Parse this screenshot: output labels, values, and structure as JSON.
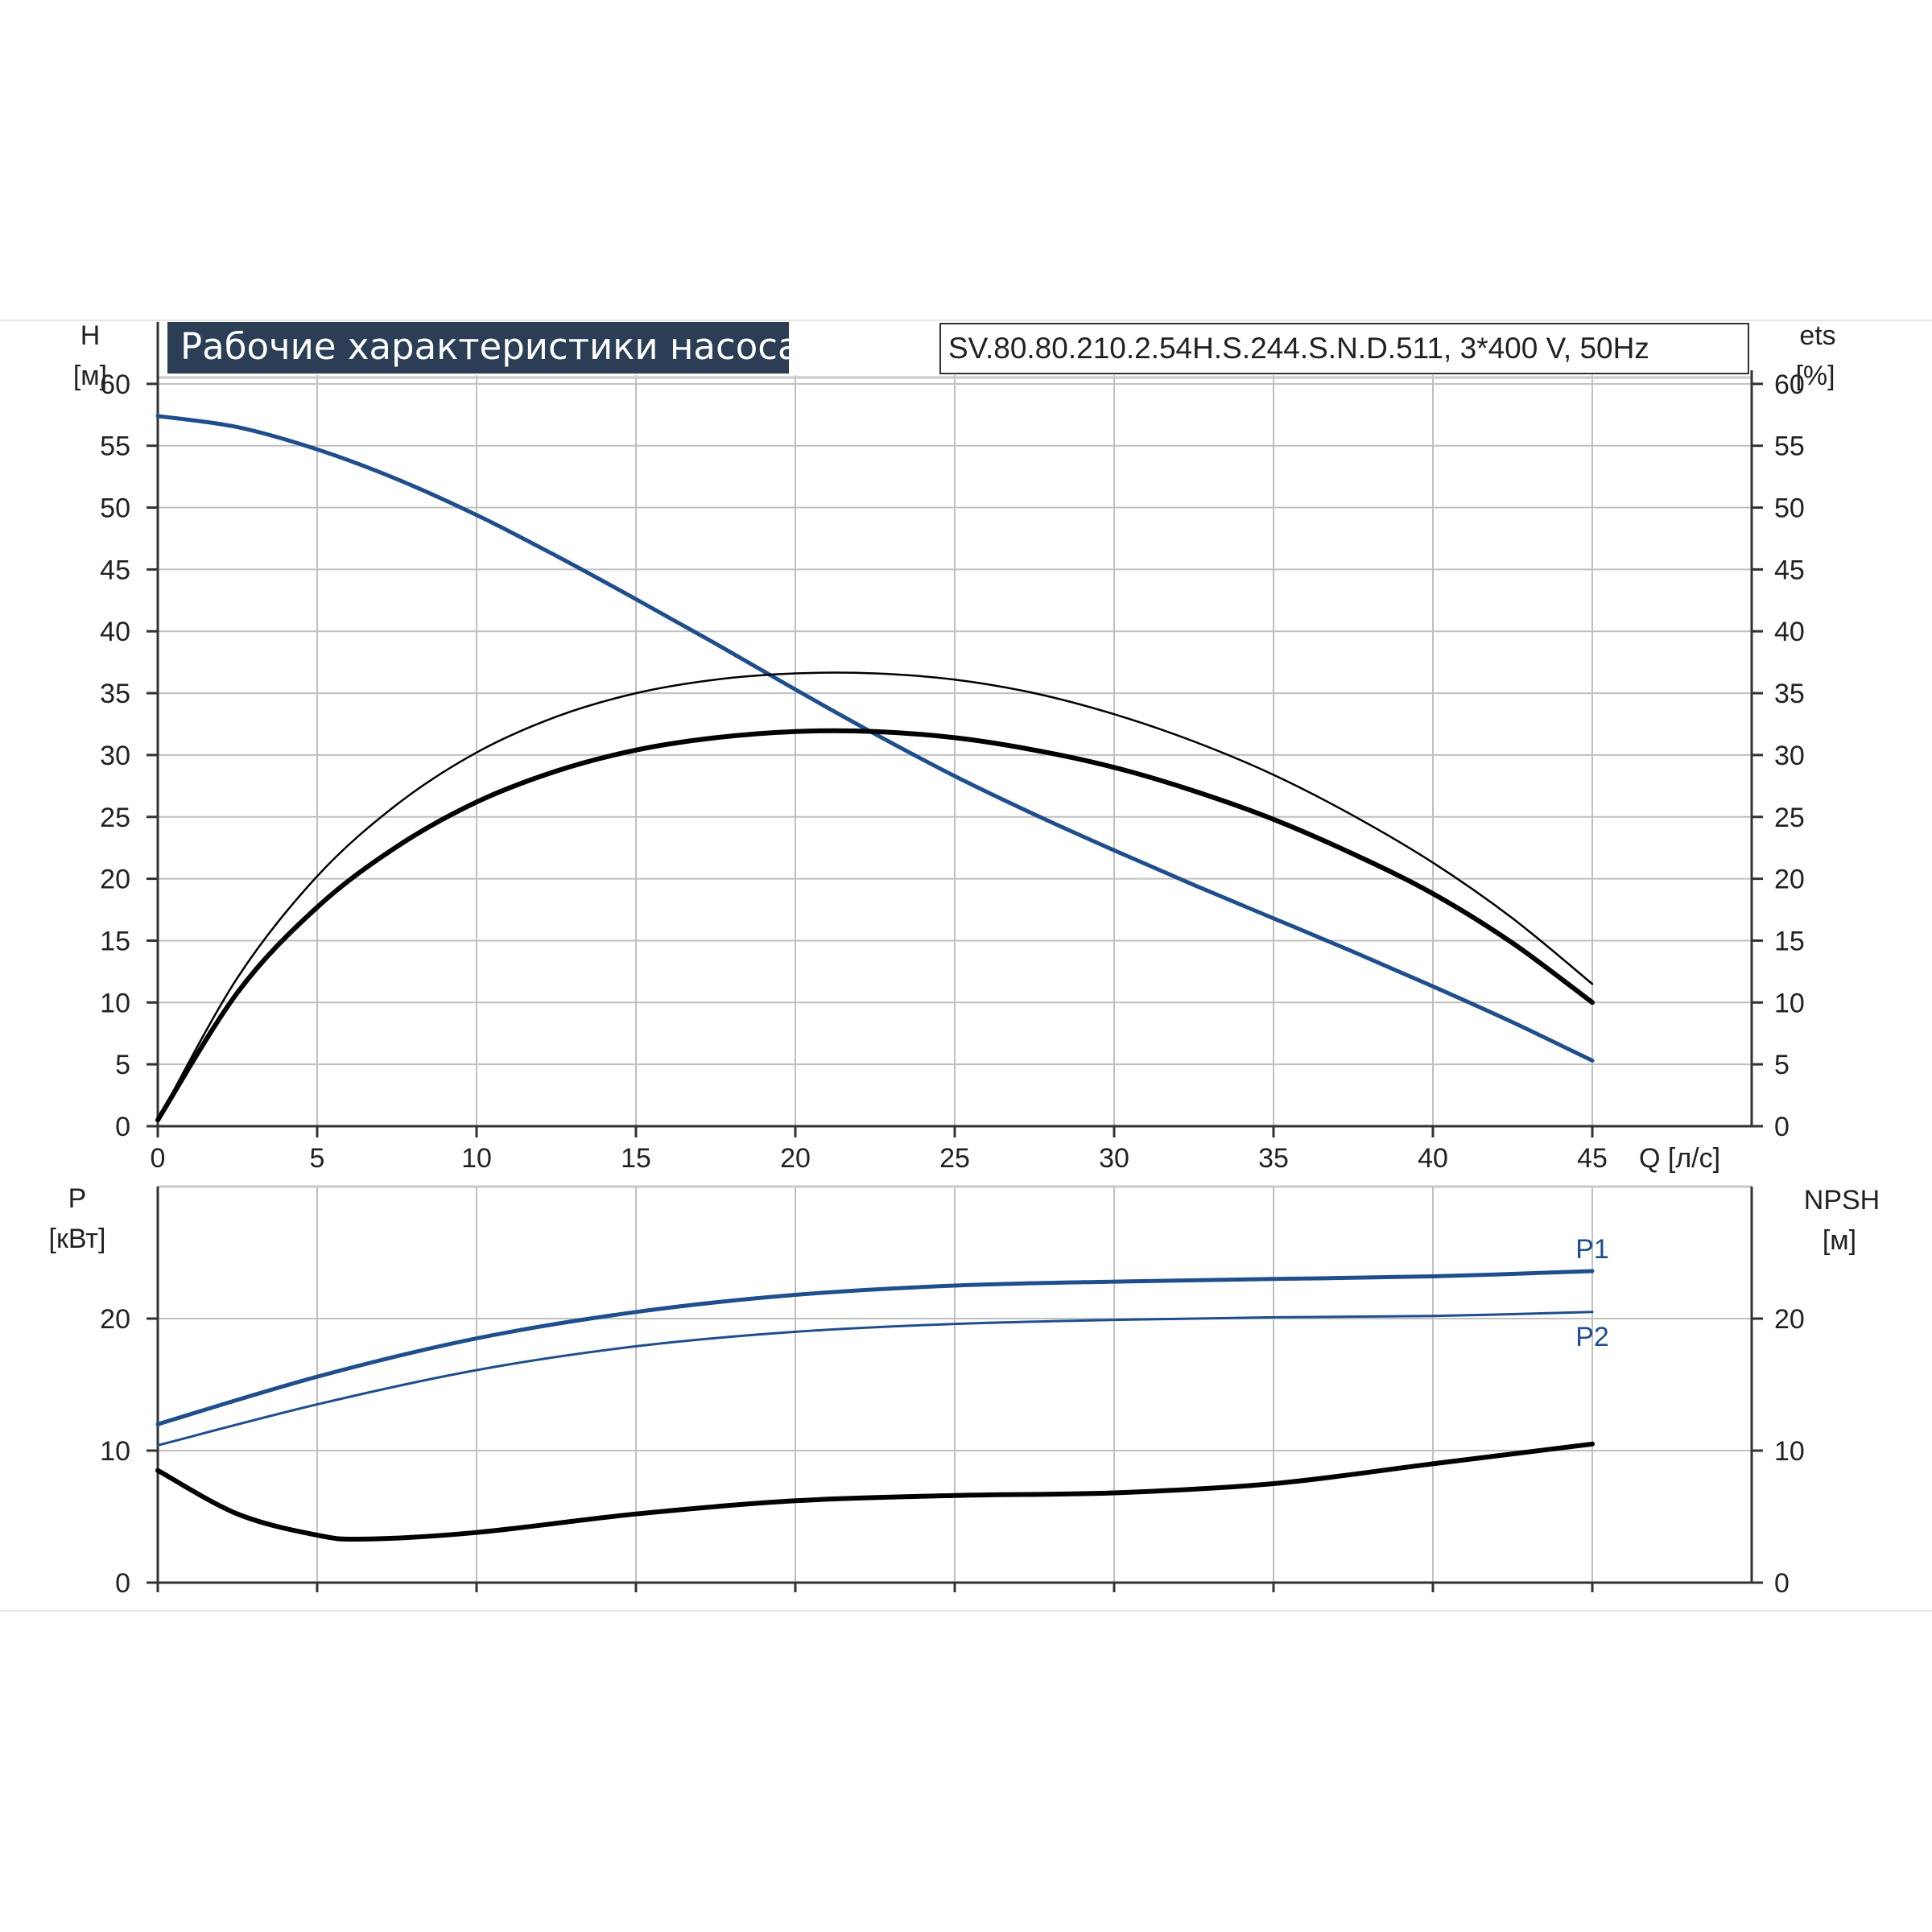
{
  "chart_data": [
    {
      "type": "line",
      "title": "Рабочие характеристики насоса",
      "subtitle": "SV.80.80.210.2.54H.S.244.S.N.D.511, 3*400 V, 50Hz",
      "ylabel_left": "H",
      "ylabel_left_unit": "[м]",
      "ylabel_right": "ets",
      "ylabel_right_unit": "[%]",
      "xlabel": "Q [л/с]",
      "xlim": [
        0,
        50
      ],
      "ylim": [
        0,
        65
      ],
      "xticks": [
        0,
        5,
        10,
        15,
        20,
        25,
        30,
        35,
        40,
        45
      ],
      "yticks": [
        0,
        5,
        10,
        15,
        20,
        25,
        30,
        35,
        40,
        45,
        50,
        55,
        60
      ],
      "grid": true,
      "series": [
        {
          "color": "#1f4e8c",
          "x": [
            0,
            2.5,
            5,
            7.5,
            10,
            12.5,
            15,
            17.5,
            20,
            22.5,
            25,
            27.5,
            30,
            32.5,
            35,
            37.5,
            40,
            42.5,
            45
          ],
          "y": [
            57.4,
            56.5,
            54.7,
            52.3,
            49.4,
            46.1,
            42.6,
            39.0,
            35.3,
            31.7,
            28.3,
            25.2,
            22.3,
            19.5,
            16.8,
            14.1,
            11.3,
            8.4,
            5.3
          ]
        },
        {
          "color": "#000000",
          "x": [
            0,
            2.5,
            5,
            7.5,
            10,
            12.5,
            15,
            17.5,
            20,
            22.5,
            25,
            27.5,
            30,
            32.5,
            35,
            37.5,
            40,
            42.5,
            45
          ],
          "y": [
            0.5,
            10.8,
            17.7,
            22.6,
            26.2,
            28.7,
            30.4,
            31.4,
            31.9,
            31.9,
            31.4,
            30.4,
            29.0,
            27.1,
            24.8,
            22.0,
            18.8,
            14.8,
            10.0
          ]
        },
        {
          "color": "#000000",
          "x": [
            0,
            2.5,
            5,
            7.5,
            10,
            12.5,
            15,
            17.5,
            20,
            22.5,
            25,
            27.5,
            30,
            32.5,
            35,
            37.5,
            40,
            42.5,
            45
          ],
          "y": [
            0.5,
            12.0,
            20.2,
            26.0,
            30.2,
            33.1,
            35.0,
            36.1,
            36.6,
            36.6,
            36.1,
            35.0,
            33.3,
            31.1,
            28.4,
            25.1,
            21.3,
            16.8,
            11.5
          ]
        }
      ]
    },
    {
      "type": "line",
      "ylabel_left": "P",
      "ylabel_left_unit": "[кВт]",
      "ylabel_right": "NPSH",
      "ylabel_right_unit": "[м]",
      "xlim": [
        0,
        50
      ],
      "ylim": [
        0,
        30
      ],
      "yticks": [
        0,
        10,
        20
      ],
      "grid": true,
      "series": [
        {
          "name": "P1",
          "color": "#1f4e8c",
          "x": [
            0,
            5,
            10,
            15,
            20,
            25,
            30,
            35,
            40,
            45
          ],
          "y": [
            12.0,
            15.6,
            18.5,
            20.5,
            21.8,
            22.5,
            22.8,
            23.0,
            23.2,
            23.6
          ]
        },
        {
          "name": "P2",
          "color": "#1f4e8c",
          "x": [
            0,
            5,
            10,
            15,
            20,
            25,
            30,
            35,
            40,
            45
          ],
          "y": [
            10.4,
            13.5,
            16.1,
            17.9,
            19.0,
            19.6,
            19.9,
            20.1,
            20.2,
            20.5
          ]
        },
        {
          "color": "#000000",
          "x": [
            0,
            2.5,
            5,
            6.5,
            10,
            15,
            20,
            25,
            30,
            35,
            40,
            45
          ],
          "y": [
            8.5,
            5.2,
            3.6,
            3.3,
            3.8,
            5.2,
            6.2,
            6.6,
            6.8,
            7.5,
            9.0,
            10.5
          ]
        }
      ]
    }
  ]
}
